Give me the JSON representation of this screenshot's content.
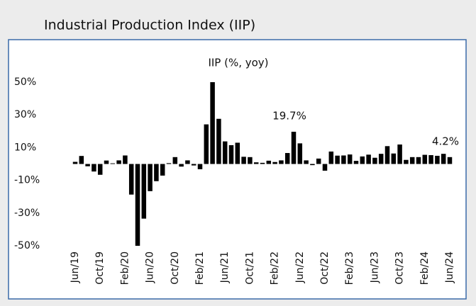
{
  "chart_data": {
    "type": "bar",
    "title": "Industrial Production Index (IIP)",
    "subtitle": "IIP (%, yoy)",
    "categories": [
      "Jun/19",
      null,
      null,
      null,
      "Oct/19",
      null,
      null,
      null,
      "Feb/20",
      null,
      null,
      null,
      "Jun/20",
      null,
      null,
      null,
      "Oct/20",
      null,
      null,
      null,
      "Feb/21",
      null,
      null,
      null,
      "Jun/21",
      null,
      null,
      null,
      "Oct/21",
      null,
      null,
      null,
      "Feb/22",
      null,
      null,
      null,
      "Jun/22",
      null,
      null,
      null,
      "Oct/22",
      null,
      null,
      null,
      "Feb/23",
      null,
      null,
      null,
      "Jun/23",
      null,
      null,
      null,
      "Oct/23",
      null,
      null,
      null,
      "Feb/24",
      null,
      null,
      null,
      "Jun/24"
    ],
    "values": [
      1.3,
      4.9,
      -1.4,
      -4.6,
      -6.6,
      2.1,
      0.4,
      2.2,
      5.2,
      -18.7,
      -50,
      -33.4,
      -16.6,
      -10.5,
      -7.1,
      0.5,
      4.2,
      -1.6,
      2.2,
      -0.9,
      -3.2,
      24.2,
      50,
      27.6,
      13.8,
      11.5,
      13.0,
      4.4,
      4.2,
      1.0,
      0.7,
      2.0,
      1.2,
      2.2,
      6.7,
      19.7,
      12.6,
      2.2,
      -0.7,
      3.3,
      -4.1,
      7.6,
      5.1,
      5.2,
      5.8,
      1.9,
      4.6,
      5.7,
      3.8,
      6.2,
      10.9,
      6.4,
      11.9,
      2.5,
      4.2,
      4.2,
      5.6,
      5.4,
      5.0,
      6.2,
      4.2
    ],
    "value_labels": [
      null,
      null,
      null,
      null,
      null,
      null,
      null,
      null,
      null,
      null,
      null,
      null,
      null,
      null,
      null,
      null,
      null,
      null,
      null,
      null,
      null,
      null,
      null,
      null,
      null,
      null,
      null,
      null,
      null,
      null,
      null,
      null,
      null,
      null,
      null,
      "19.7%",
      null,
      null,
      null,
      null,
      null,
      null,
      null,
      null,
      null,
      null,
      null,
      null,
      null,
      null,
      null,
      null,
      null,
      null,
      null,
      null,
      null,
      null,
      null,
      null,
      "4.2%"
    ],
    "color": "#000000",
    "ylim": [
      -50,
      50
    ],
    "yticks": [
      {
        "value": 50,
        "label": "50%"
      },
      {
        "value": 30,
        "label": "30%"
      },
      {
        "value": 10,
        "label": "10%"
      },
      {
        "value": -10,
        "label": "-10%"
      },
      {
        "value": -30,
        "label": "-30%"
      },
      {
        "value": -50,
        "label": "-50%"
      }
    ],
    "grid": false
  }
}
